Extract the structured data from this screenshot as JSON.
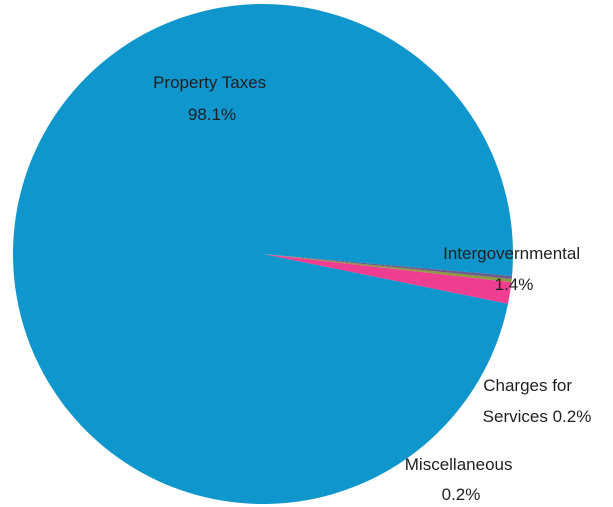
{
  "chart_data": {
    "type": "pie",
    "title": "",
    "slices": [
      {
        "category": "Property Taxes",
        "value": 98.1,
        "value_label": "98.1%",
        "color": "#0f96cc"
      },
      {
        "category": "Intergovernmental",
        "value": 1.4,
        "value_label": "1.4%",
        "color": "#ef3e92"
      },
      {
        "category": "Charges for Services",
        "value": 0.2,
        "value_label": "0.2%",
        "color": "#8a9a3c"
      },
      {
        "category": "Miscellaneous",
        "value": 0.2,
        "value_label": "0.2%",
        "color": "#6f5a8c"
      }
    ],
    "legend": "none",
    "labels": "on-chart"
  }
}
